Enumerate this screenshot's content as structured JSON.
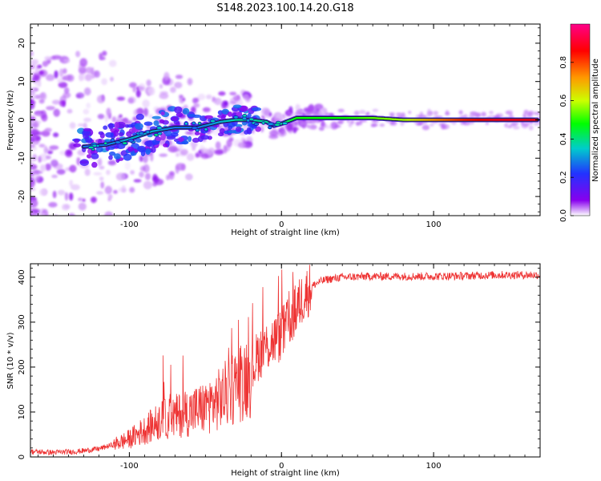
{
  "title": "S148.2023.100.14.20.G18",
  "colors": {
    "snr_line": "#ee3333",
    "track": "#1a1a2e"
  },
  "chart_data": [
    {
      "type": "heatmap",
      "xlabel": "Height of straight line (km)",
      "ylabel": "Frequency (Hz)",
      "xlim": [
        -165,
        170
      ],
      "ylim": [
        -25,
        25
      ],
      "xticks": [
        -100,
        0,
        100
      ],
      "yticks": [
        -20,
        -10,
        0,
        10,
        20
      ],
      "xtick_labels": [
        "-100",
        "0",
        "100"
      ],
      "ytick_labels": [
        "-20",
        "-10",
        "0",
        "10",
        "20"
      ],
      "colorbar": {
        "label": "Normalized spectral amplitude",
        "range": [
          0,
          1
        ],
        "ticks": [
          "0.0",
          "0.2",
          "0.4",
          "0.6",
          "0.8"
        ],
        "colormap": [
          "#ffffff",
          "#8800ee",
          "#2233ff",
          "#00cccc",
          "#00ff00",
          "#ccff00",
          "#ff9900",
          "#ff0000",
          "#ff0088"
        ]
      },
      "ridge": {
        "x": [
          -130,
          -115,
          -100,
          -85,
          -70,
          -55,
          -40,
          -30,
          -20,
          -10,
          -5,
          0,
          10,
          20,
          40,
          60,
          80,
          100,
          120,
          140,
          168
        ],
        "freq": [
          -7,
          -6.5,
          -5,
          -3,
          -2,
          -2,
          -0.5,
          0,
          0,
          -0.5,
          -1.5,
          -1,
          0.5,
          0.5,
          0.5,
          0.5,
          0,
          0,
          0,
          0,
          0
        ],
        "amplitude": [
          0.3,
          0.3,
          0.35,
          0.35,
          0.3,
          0.3,
          0.35,
          0.4,
          0.4,
          0.4,
          0.4,
          0.4,
          0.5,
          0.5,
          0.5,
          0.55,
          0.6,
          0.75,
          0.85,
          0.9,
          0.9
        ]
      }
    },
    {
      "type": "line",
      "xlabel": "Height of straight line (km)",
      "ylabel": "SNR (10 * v/v)",
      "xlim": [
        -165,
        170
      ],
      "ylim": [
        0,
        430
      ],
      "xticks": [
        -100,
        0,
        100
      ],
      "yticks": [
        0,
        100,
        200,
        300,
        400
      ],
      "xtick_labels": [
        "-100",
        "0",
        "100"
      ],
      "ytick_labels": [
        "0",
        "100",
        "200",
        "300",
        "400"
      ],
      "series": [
        {
          "x": [
            -165,
            -150,
            -135,
            -120,
            -110,
            -100,
            -90,
            -80,
            -70,
            -60,
            -50,
            -40,
            -30,
            -20,
            -15,
            -10,
            -5,
            0,
            5,
            10,
            15,
            20,
            25,
            30,
            40,
            60,
            80,
            100,
            120,
            140,
            170
          ],
          "values": [
            12,
            10,
            12,
            18,
            28,
            40,
            60,
            80,
            90,
            100,
            110,
            130,
            160,
            190,
            230,
            245,
            260,
            270,
            300,
            330,
            360,
            380,
            390,
            395,
            400,
            402,
            402,
            402,
            403,
            405,
            405
          ]
        }
      ]
    }
  ]
}
